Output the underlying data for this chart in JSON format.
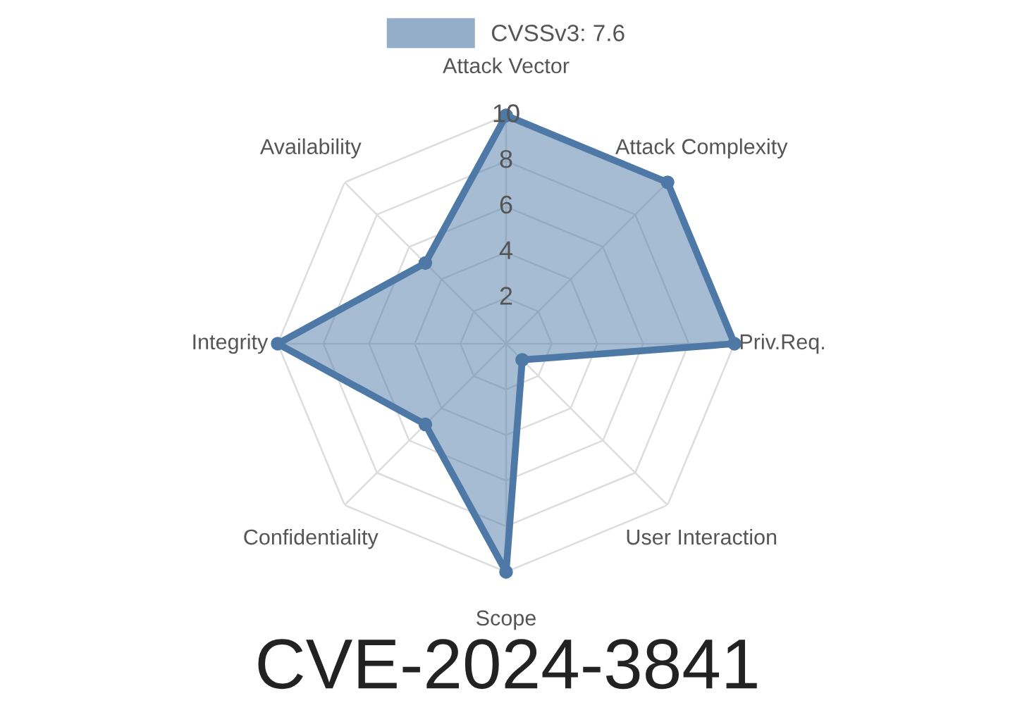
{
  "chart_data": {
    "type": "radar",
    "title": "CVE-2024-3841",
    "categories": [
      "Attack Vector",
      "Attack Complexity",
      "Priv.Req.",
      "User Interaction",
      "Scope",
      "Confidentiality",
      "Integrity",
      "Availability"
    ],
    "series": [
      {
        "name": "CVSSv3: 7.6",
        "color": "#4e79a7",
        "values": [
          10,
          10,
          10,
          1,
          10,
          5,
          10,
          5
        ]
      }
    ],
    "ylim": [
      0,
      10
    ],
    "yticks": [
      2,
      4,
      6,
      8,
      10
    ],
    "grid": true,
    "legend": "top",
    "marker": "circle"
  }
}
